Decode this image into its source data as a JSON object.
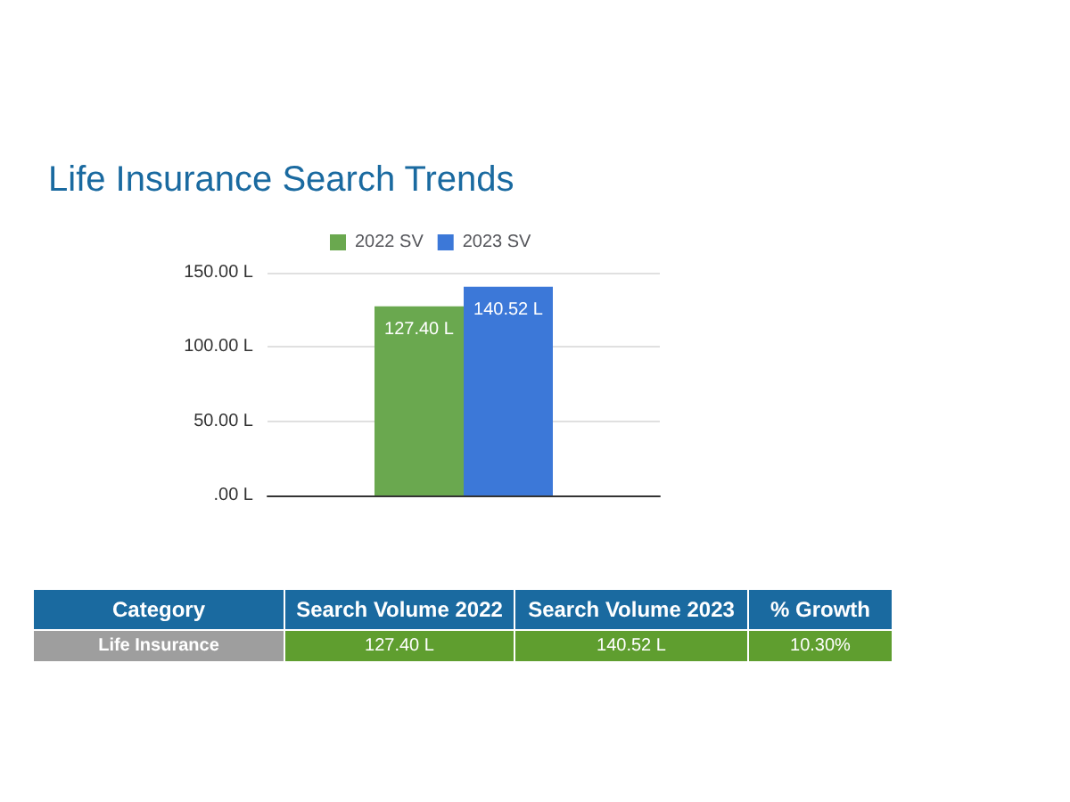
{
  "chart_data": {
    "type": "bar",
    "title": "Life Insurance Search Trends",
    "categories": [
      null
    ],
    "series": [
      {
        "name": "2022 SV",
        "color": "#6aa84f",
        "values": [
          127.4
        ],
        "value_labels": [
          "127.40 L"
        ]
      },
      {
        "name": "2023 SV",
        "color": "#3c78d8",
        "values": [
          140.52
        ],
        "value_labels": [
          "140.52 L"
        ]
      }
    ],
    "ylim": [
      0,
      150
    ],
    "yticks": [
      {
        "value": 0,
        "label": ".00 L"
      },
      {
        "value": 50,
        "label": "50.00 L"
      },
      {
        "value": 100,
        "label": "100.00 L"
      },
      {
        "value": 150,
        "label": "150.00 L"
      }
    ],
    "grid": "y",
    "legend": "top",
    "annotations": [
      "Category",
      "Search Volume 2022",
      "Search Volume 2023",
      "% Growth",
      "Life Insurance",
      "127.40 L",
      "140.52 L",
      "10.30%"
    ]
  }
}
